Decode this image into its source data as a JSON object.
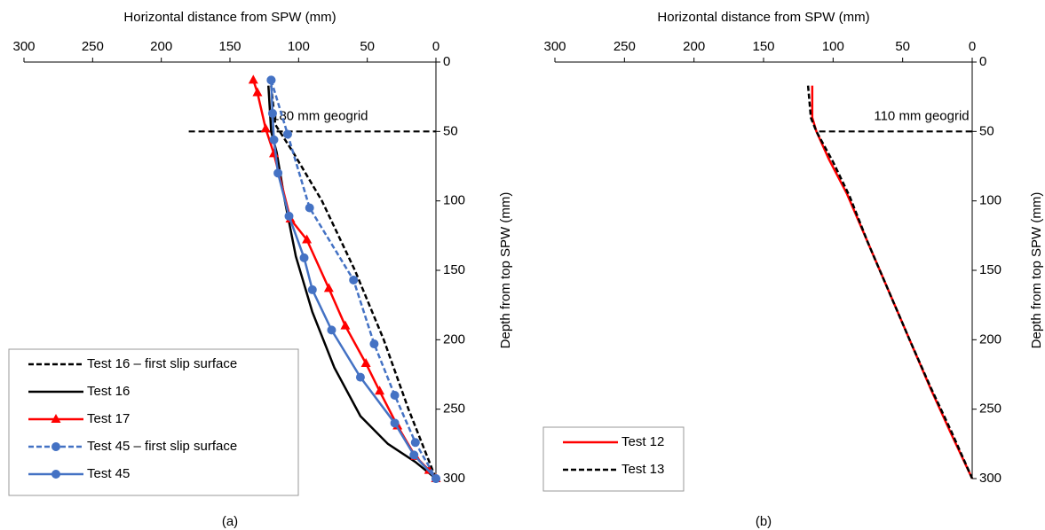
{
  "chart_data": [
    {
      "type": "line",
      "caption": "(a)",
      "x_label": "Horizontal distance from SPW (mm)",
      "y_label": "Depth from top SPW (mm)",
      "xlim": [
        300,
        0
      ],
      "ylim": [
        300,
        0
      ],
      "xticks": [
        300,
        250,
        200,
        150,
        100,
        50,
        0
      ],
      "yticks": [
        0,
        50,
        100,
        150,
        200,
        250,
        300
      ],
      "legend": "lower left",
      "geogrid": {
        "x": [
          180,
          0
        ],
        "depth": 50,
        "label": "180 mm geogrid"
      },
      "series": [
        {
          "name": "Test 16 – first slip surface",
          "color": "#000000",
          "dash": true,
          "marker": "none",
          "x": [
            120,
            117,
            104,
            83,
            59,
            38,
            20,
            0
          ],
          "values": [
            17,
            45,
            65,
            100,
            150,
            200,
            250,
            300
          ]
        },
        {
          "name": "Test 16",
          "color": "#000000",
          "dash": false,
          "marker": "none",
          "x": [
            122,
            120,
            116,
            110,
            102,
            90,
            74,
            55,
            35,
            15,
            0
          ],
          "values": [
            17,
            50,
            65,
            100,
            140,
            180,
            220,
            255,
            275,
            288,
            300
          ]
        },
        {
          "name": "Test 17",
          "color": "#ff0000",
          "dash": false,
          "marker": "triangle",
          "x": [
            133,
            130,
            124,
            118,
            106,
            94,
            78,
            66,
            51,
            41,
            28,
            15,
            5,
            0
          ],
          "values": [
            13,
            22,
            48,
            66,
            113,
            128,
            163,
            190,
            217,
            237,
            262,
            284,
            294,
            300
          ]
        },
        {
          "name": "Test 45 – first slip surface",
          "color": "#4472c4",
          "dash": true,
          "marker": "circle",
          "x": [
            120,
            108,
            92,
            60,
            45,
            30,
            15,
            0
          ],
          "values": [
            13,
            52,
            105,
            157,
            203,
            240,
            274,
            300
          ]
        },
        {
          "name": "Test 45",
          "color": "#4472c4",
          "dash": false,
          "marker": "circle",
          "x": [
            120,
            119,
            118,
            115,
            107,
            96,
            90,
            76,
            55,
            30,
            16,
            0
          ],
          "values": [
            13,
            37,
            56,
            80,
            111,
            141,
            164,
            193,
            227,
            260,
            283,
            300
          ]
        }
      ]
    },
    {
      "type": "line",
      "caption": "(b)",
      "x_label": "Horizontal distance from SPW (mm)",
      "y_label": "Depth from top SPW (mm)",
      "xlim": [
        300,
        0
      ],
      "ylim": [
        300,
        0
      ],
      "xticks": [
        300,
        250,
        200,
        150,
        100,
        50,
        0
      ],
      "yticks": [
        0,
        50,
        100,
        150,
        200,
        250,
        300
      ],
      "legend": "lower left",
      "geogrid": {
        "x": [
          110,
          0
        ],
        "depth": 50,
        "label": "110 mm geogrid"
      },
      "series": [
        {
          "name": "Test 12",
          "color": "#ff0000",
          "dash": false,
          "marker": "none",
          "x": [
            115,
            115,
            112,
            103,
            90,
            75,
            60,
            45,
            30,
            15,
            0
          ],
          "values": [
            17,
            40,
            50,
            70,
            95,
            130,
            165,
            200,
            235,
            268,
            300
          ]
        },
        {
          "name": "Test 13",
          "color": "#000000",
          "dash": true,
          "marker": "none",
          "x": [
            118,
            116,
            112,
            100,
            88,
            75,
            60,
            45,
            30,
            15,
            0
          ],
          "values": [
            17,
            40,
            50,
            72,
            97,
            130,
            165,
            200,
            234,
            266,
            300
          ]
        }
      ]
    }
  ]
}
